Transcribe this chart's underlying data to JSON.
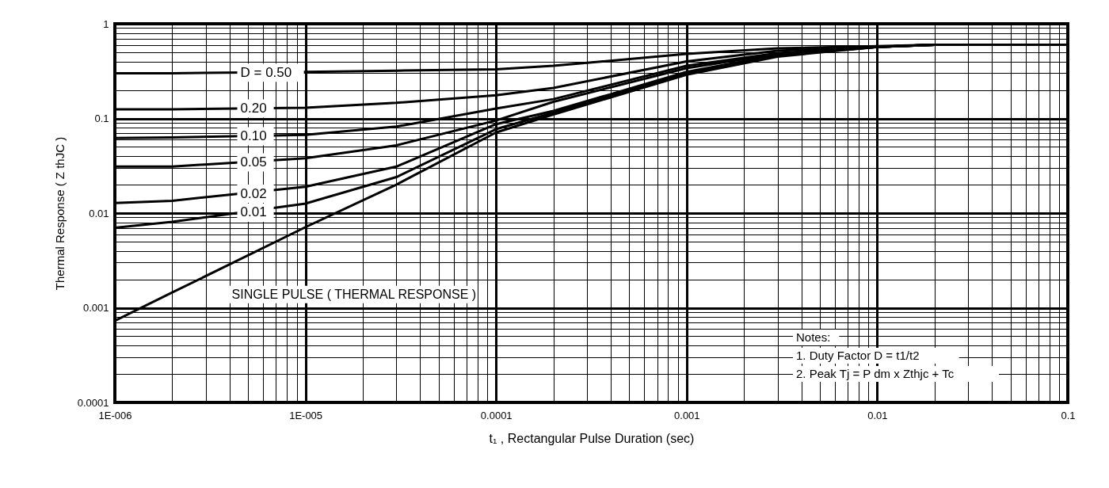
{
  "chart_data": {
    "type": "line",
    "xlabel": "t₁ , Rectangular Pulse Duration (sec)",
    "ylabel": "Thermal Response ( Z thJC )",
    "x": [
      1e-06,
      2e-06,
      1e-05,
      3e-05,
      0.0001,
      0.0002,
      0.001,
      0.003,
      0.01,
      0.02,
      0.1
    ],
    "series": [
      {
        "name": "D = 0.50",
        "color": "#000000",
        "values": [
          0.3,
          0.3,
          0.31,
          0.32,
          0.33,
          0.36,
          0.48,
          0.55,
          0.58,
          0.6,
          0.6
        ]
      },
      {
        "name": "0.20",
        "color": "#000000",
        "values": [
          0.125,
          0.125,
          0.13,
          0.146,
          0.176,
          0.21,
          0.4,
          0.52,
          0.57,
          0.6,
          0.6
        ]
      },
      {
        "name": "0.10",
        "color": "#000000",
        "values": [
          0.062,
          0.063,
          0.067,
          0.082,
          0.127,
          0.16,
          0.36,
          0.49,
          0.57,
          0.6,
          0.6
        ]
      },
      {
        "name": "0.05",
        "color": "#000000",
        "values": [
          0.031,
          0.031,
          0.038,
          0.052,
          0.095,
          0.15,
          0.34,
          0.48,
          0.57,
          0.6,
          0.6
        ]
      },
      {
        "name": "0.02",
        "color": "#000000",
        "values": [
          0.0128,
          0.0135,
          0.019,
          0.031,
          0.087,
          0.12,
          0.31,
          0.47,
          0.57,
          0.6,
          0.6
        ]
      },
      {
        "name": "0.01",
        "color": "#000000",
        "values": [
          0.007,
          0.0081,
          0.0126,
          0.024,
          0.077,
          0.115,
          0.3,
          0.46,
          0.57,
          0.6,
          0.6
        ]
      },
      {
        "name": "SINGLE PULSE ( THERMAL RESPONSE )",
        "color": "#000000",
        "values": [
          0.00073,
          0.00145,
          0.0071,
          0.02,
          0.071,
          0.11,
          0.29,
          0.45,
          0.57,
          0.6,
          0.6
        ]
      }
    ],
    "log": "xy",
    "xlim": [
      1e-06,
      0.1
    ],
    "ylim": [
      0.0001,
      1
    ],
    "xticks": [
      {
        "value": 1e-06,
        "label": "1E-006"
      },
      {
        "value": 1e-05,
        "label": "1E-005"
      },
      0.0001,
      0.001,
      0.01,
      0.1
    ],
    "yticks": [
      0.0001,
      0.001,
      0.01,
      0.1,
      1
    ],
    "grid": true,
    "legend": false,
    "marker": "none",
    "line_style": "solid",
    "annotations": [
      "Notes:",
      "1. Duty Factor D = t1/t2",
      "2. Peak Tj = P dm x Zthjc + Tc"
    ]
  }
}
